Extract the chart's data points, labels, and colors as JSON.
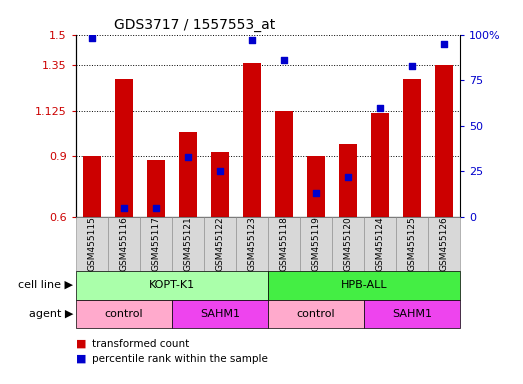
{
  "title": "GDS3717 / 1557553_at",
  "samples": [
    "GSM455115",
    "GSM455116",
    "GSM455117",
    "GSM455121",
    "GSM455122",
    "GSM455123",
    "GSM455118",
    "GSM455119",
    "GSM455120",
    "GSM455124",
    "GSM455125",
    "GSM455126"
  ],
  "transformed_count": [
    0.9,
    1.28,
    0.88,
    1.02,
    0.92,
    1.36,
    1.125,
    0.9,
    0.96,
    1.115,
    1.28,
    1.35
  ],
  "percentile_rank": [
    98,
    5,
    5,
    33,
    25,
    97,
    86,
    13,
    22,
    60,
    83,
    95
  ],
  "bar_color": "#cc0000",
  "dot_color": "#0000cc",
  "ymin": 0.6,
  "ymax": 1.5,
  "yticks": [
    0.6,
    0.9,
    1.125,
    1.35,
    1.5
  ],
  "ytick_labels": [
    "0.6",
    "0.9",
    "1.125",
    "1.35",
    "1.5"
  ],
  "y2min": 0,
  "y2max": 100,
  "y2ticks": [
    0,
    25,
    50,
    75,
    100
  ],
  "y2tick_labels": [
    "0",
    "25",
    "50",
    "75",
    "100%"
  ],
  "cell_line_groups": [
    {
      "label": "KOPT-K1",
      "start": 0,
      "end": 6,
      "color": "#aaffaa"
    },
    {
      "label": "HPB-ALL",
      "start": 6,
      "end": 12,
      "color": "#44ee44"
    }
  ],
  "agent_groups": [
    {
      "label": "control",
      "start": 0,
      "end": 3,
      "color": "#ffaacc"
    },
    {
      "label": "SAHM1",
      "start": 3,
      "end": 6,
      "color": "#ee44ee"
    },
    {
      "label": "control",
      "start": 6,
      "end": 9,
      "color": "#ffaacc"
    },
    {
      "label": "SAHM1",
      "start": 9,
      "end": 12,
      "color": "#ee44ee"
    }
  ],
  "legend_bar_label": "transformed count",
  "legend_dot_label": "percentile rank within the sample",
  "bar_width": 0.55,
  "dot_size": 25,
  "xtick_bg": "#d8d8d8",
  "cell_line_left_label": "cell line",
  "agent_left_label": "agent"
}
